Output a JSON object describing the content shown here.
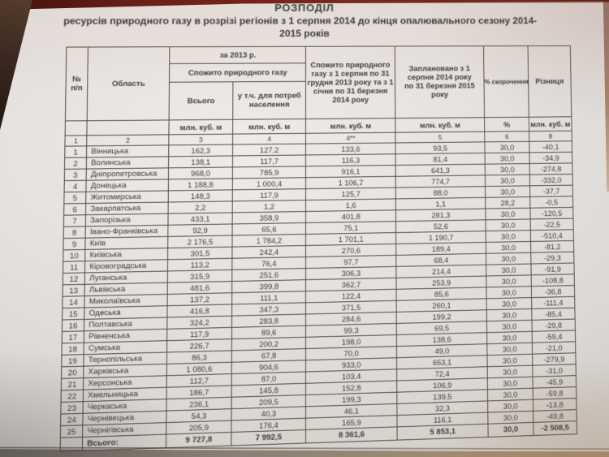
{
  "title": {
    "line1": "РОЗПОДІЛ",
    "line2": "ресурсів природного газу в розрізі регіонів з 1 серпня 2014 до кінця опалювального сезону 2014-",
    "line3": "2015 років"
  },
  "table": {
    "header": {
      "col_num": "№\nп/п",
      "col_region": "Область",
      "group_2013": "за 2013 р.",
      "group_consumed": "Спожито природного газу",
      "col_total": "Всього",
      "col_population": "у т.ч. для потреб населення",
      "col_consumed_2014": "Спожито природного газу з 1 серпня по 31 грудня 2013 року та з 1 січня по 31 березня 2014 року",
      "col_planned": "Заплановано з 1 серпня 2014 року по 31 березня 2015 року",
      "col_pct": "% скорочення",
      "col_diff": "Різниця"
    },
    "units_row": [
      "",
      "",
      "млн. куб. м",
      "млн. куб. м",
      "млн. куб. м",
      "млн. куб. м",
      "%",
      "млн. куб. м"
    ],
    "numbering_row": [
      "1",
      "2",
      "3",
      "4",
      "4**",
      "5",
      "6",
      "8"
    ],
    "rows": [
      {
        "num": "1",
        "region": "Вінницька",
        "values": [
          "162,3",
          "127,2",
          "133,6",
          "93,5",
          "30,0",
          "-40,1"
        ]
      },
      {
        "num": "2",
        "region": "Волинська",
        "values": [
          "138,1",
          "117,7",
          "116,3",
          "81,4",
          "30,0",
          "-34,9"
        ]
      },
      {
        "num": "3",
        "region": "Дніпропетровська",
        "values": [
          "968,0",
          "785,9",
          "916,1",
          "641,3",
          "30,0",
          "-274,8"
        ]
      },
      {
        "num": "4",
        "region": "Донецька",
        "values": [
          "1 188,8",
          "1 000,4",
          "1 106,7",
          "774,7",
          "30,0",
          "-332,0"
        ]
      },
      {
        "num": "5",
        "region": "Житомирська",
        "values": [
          "148,3",
          "117,9",
          "125,7",
          "88,0",
          "30,0",
          "-37,7"
        ]
      },
      {
        "num": "6",
        "region": "Закарпатська",
        "values": [
          "2,2",
          "1,2",
          "1,6",
          "1,1",
          "28,2",
          "-0,5"
        ]
      },
      {
        "num": "7",
        "region": "Запорізька",
        "values": [
          "433,1",
          "358,9",
          "401,8",
          "281,3",
          "30,0",
          "-120,5"
        ]
      },
      {
        "num": "8",
        "region": "Івано-Франківська",
        "values": [
          "92,9",
          "65,6",
          "75,1",
          "52,6",
          "30,0",
          "-22,5"
        ]
      },
      {
        "num": "9",
        "region": "Київ",
        "values": [
          "2 176,5",
          "1 784,2",
          "1 701,1",
          "1 190,7",
          "30,0",
          "-510,4"
        ]
      },
      {
        "num": "10",
        "region": "Київська",
        "values": [
          "301,5",
          "242,4",
          "270,6",
          "189,4",
          "30,0",
          "-81,2"
        ]
      },
      {
        "num": "11",
        "region": "Кіровоградська",
        "values": [
          "113,2",
          "76,4",
          "97,7",
          "68,4",
          "30,0",
          "-29,3"
        ]
      },
      {
        "num": "12",
        "region": "Луганська",
        "values": [
          "315,9",
          "251,6",
          "306,3",
          "214,4",
          "30,0",
          "-91,9"
        ]
      },
      {
        "num": "13",
        "region": "Львівська",
        "values": [
          "481,6",
          "399,8",
          "362,7",
          "253,9",
          "30,0",
          "-108,8"
        ]
      },
      {
        "num": "14",
        "region": "Миколаївська",
        "values": [
          "137,2",
          "111,1",
          "122,4",
          "85,6",
          "30,0",
          "-36,8"
        ]
      },
      {
        "num": "15",
        "region": "Одеська",
        "values": [
          "416,8",
          "347,3",
          "371,5",
          "260,1",
          "30,0",
          "-111,4"
        ]
      },
      {
        "num": "16",
        "region": "Полтавська",
        "values": [
          "324,2",
          "283,8",
          "284,6",
          "199,2",
          "30,0",
          "-85,4"
        ]
      },
      {
        "num": "17",
        "region": "Рівненська",
        "values": [
          "117,9",
          "89,6",
          "99,3",
          "69,5",
          "30,0",
          "-29,8"
        ]
      },
      {
        "num": "18",
        "region": "Сумська",
        "values": [
          "226,7",
          "200,2",
          "198,0",
          "138,6",
          "30,0",
          "-59,4"
        ]
      },
      {
        "num": "19",
        "region": "Тернопільська",
        "values": [
          "86,3",
          "67,8",
          "70,0",
          "49,0",
          "30,0",
          "-21,0"
        ]
      },
      {
        "num": "20",
        "region": "Харківська",
        "values": [
          "1 080,6",
          "904,6",
          "933,0",
          "653,1",
          "30,0",
          "-279,9"
        ]
      },
      {
        "num": "21",
        "region": "Херсонська",
        "values": [
          "112,7",
          "87,0",
          "103,4",
          "72,4",
          "30,0",
          "-31,0"
        ]
      },
      {
        "num": "22",
        "region": "Хмельницька",
        "values": [
          "186,7",
          "145,8",
          "152,8",
          "106,9",
          "30,0",
          "-45,9"
        ]
      },
      {
        "num": "23",
        "region": "Черкаська",
        "values": [
          "236,1",
          "209,5",
          "199,3",
          "139,5",
          "30,0",
          "-59,8"
        ]
      },
      {
        "num": "24",
        "region": "Чернівецька",
        "values": [
          "54,3",
          "40,3",
          "46,1",
          "32,3",
          "30,0",
          "-13,8"
        ]
      },
      {
        "num": "25",
        "region": "Чернігівська",
        "values": [
          "205,9",
          "176,4",
          "165,9",
          "116,1",
          "30,0",
          "-49,8"
        ]
      }
    ],
    "total_row": {
      "label": "Всього:",
      "values": [
        "9 727,8",
        "7 992,5",
        "8 361,6",
        "5 853,1",
        "30,0",
        "-2 508,5"
      ]
    }
  }
}
